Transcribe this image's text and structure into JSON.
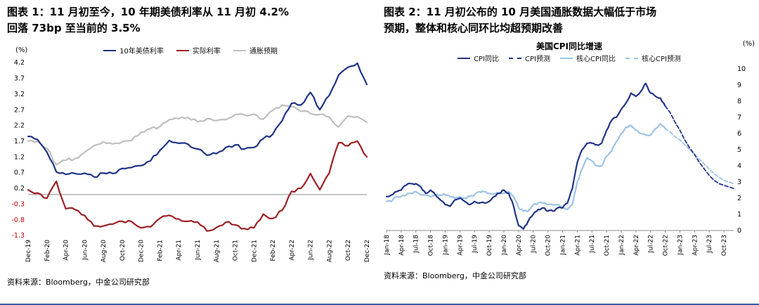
{
  "figure1": {
    "caption_line1": "图表 1：11 月初至今，10 年期美债利率从 11 月初 4.2%",
    "caption_line2": "回落 73bp 至当前的 3.5%",
    "source": "资料来源：Bloomberg，中金公司研究部"
  },
  "figure2": {
    "caption_line1": "图表 2：11 月初公布的 10 月美国通胀数据大幅低于市场",
    "caption_line2": "预期，整体和核心同环比均超预期改善",
    "source": "资料来源：Bloomberg，中金公司研究部"
  },
  "chart_data": [
    {
      "type": "line",
      "title": "",
      "y_unit": "(%)",
      "xlabel": "",
      "ylabel": "(%)",
      "ylim": [
        -1.3,
        4.2
      ],
      "yticks": [
        4.2,
        3.7,
        3.2,
        2.7,
        2.2,
        1.7,
        1.2,
        0.7,
        0.2,
        -0.3,
        -0.8,
        -1.3
      ],
      "ytick_decimals": 1,
      "y_axis_side": "left",
      "negative_tick_color": "#c00000",
      "zero_line": true,
      "bottom_axis": false,
      "grid": false,
      "legend_position": "top",
      "n_points": 37,
      "xtick_every": 2,
      "xtick_labels": [
        "Dec-19",
        "Feb-20",
        "Apr-20",
        "Jun-20",
        "Aug-20",
        "Oct-20",
        "Dec-20",
        "Feb-21",
        "Apr-21",
        "Jun-21",
        "Aug-21",
        "Oct-21",
        "Dec-21",
        "Feb-22",
        "Apr-22",
        "Jun-22",
        "Aug-22",
        "Oct-22",
        "Dec-22"
      ],
      "series": [
        {
          "id": "us10y",
          "name": "10年美债利率",
          "color": "#1f3488",
          "dash": false,
          "values": [
            1.85,
            1.75,
            1.35,
            0.72,
            0.64,
            0.67,
            0.68,
            0.56,
            0.68,
            0.67,
            0.83,
            0.86,
            0.92,
            1.07,
            1.4,
            1.72,
            1.63,
            1.6,
            1.45,
            1.25,
            1.3,
            1.5,
            1.58,
            1.45,
            1.5,
            1.78,
            1.92,
            2.35,
            2.9,
            2.85,
            3.25,
            2.7,
            3.15,
            3.8,
            4.05,
            4.18,
            3.5
          ]
        },
        {
          "id": "real-rate",
          "name": "实际利率",
          "color": "#9c2024",
          "dash": false,
          "values": [
            0.15,
            0.05,
            -0.12,
            0.42,
            -0.45,
            -0.48,
            -0.66,
            -1.0,
            -1.0,
            -0.94,
            -0.85,
            -0.86,
            -1.06,
            -1.03,
            -0.76,
            -0.66,
            -0.78,
            -0.85,
            -0.87,
            -1.16,
            -1.05,
            -0.88,
            -0.96,
            -1.08,
            -1.06,
            -0.62,
            -0.76,
            -0.5,
            0.1,
            0.2,
            0.67,
            0.15,
            0.68,
            1.65,
            1.55,
            1.7,
            1.2
          ]
        },
        {
          "id": "breakeven",
          "name": "通胀预期",
          "color": "#bfbfbf",
          "dash": false,
          "values": [
            1.7,
            1.7,
            1.47,
            0.95,
            1.09,
            1.15,
            1.34,
            1.56,
            1.68,
            1.61,
            1.68,
            1.72,
            1.98,
            2.1,
            2.16,
            2.38,
            2.41,
            2.45,
            2.32,
            2.41,
            2.35,
            2.38,
            2.54,
            2.53,
            2.56,
            2.4,
            2.68,
            2.85,
            2.8,
            2.65,
            2.58,
            2.55,
            2.47,
            2.15,
            2.5,
            2.48,
            2.3
          ]
        }
      ]
    },
    {
      "type": "line",
      "title": "美国CPI同比增速",
      "y_unit": "(%)",
      "xlabel": "",
      "ylabel": "(%)",
      "ylim": [
        0,
        10
      ],
      "yticks": [
        0,
        1,
        2,
        3,
        4,
        5,
        6,
        7,
        8,
        9,
        10
      ],
      "ytick_decimals": 0,
      "y_axis_side": "right",
      "zero_line": false,
      "bottom_axis": true,
      "grid": false,
      "legend_position": "top",
      "n_points": 72,
      "xtick_every": 3,
      "xtick_labels": [
        "Jan-18",
        "Apr-18",
        "Jul-18",
        "Oct-18",
        "Jan-19",
        "Apr-19",
        "Jul-19",
        "Oct-19",
        "Jan-20",
        "Apr-20",
        "Jul-20",
        "Oct-20",
        "Jan-21",
        "Apr-21",
        "Jul-21",
        "Oct-21",
        "Jan-22",
        "Apr-22",
        "Jul-22",
        "Oct-22",
        "Jan-23",
        "Apr-23",
        "Jul-23",
        "Oct-23"
      ],
      "series": [
        {
          "id": "cpi-yoy",
          "name": "CPI同比",
          "color": "#1f3488",
          "dash": false,
          "values": [
            2.1,
            2.2,
            2.4,
            2.5,
            2.8,
            2.9,
            2.9,
            2.7,
            2.3,
            2.5,
            2.2,
            1.9,
            1.6,
            1.5,
            1.9,
            2.0,
            1.8,
            1.6,
            1.8,
            1.7,
            1.7,
            1.8,
            2.1,
            2.3,
            2.5,
            2.3,
            1.5,
            0.3,
            0.1,
            0.6,
            1.0,
            1.3,
            1.4,
            1.2,
            1.2,
            1.4,
            1.4,
            1.7,
            2.6,
            4.2,
            5.0,
            5.4,
            5.4,
            5.3,
            5.4,
            6.2,
            6.8,
            7.0,
            7.5,
            7.9,
            8.5,
            8.3,
            8.6,
            9.1,
            8.5,
            8.3,
            8.2,
            7.7
          ]
        },
        {
          "id": "cpi-forecast",
          "name": "CPI预测",
          "color": "#1f3488",
          "dash": true,
          "start_index": 57,
          "values": [
            7.7,
            7.3,
            6.7,
            6.2,
            5.6,
            5.1,
            4.7,
            4.2,
            3.8,
            3.4,
            3.1,
            2.9,
            2.8,
            2.7,
            2.6
          ]
        },
        {
          "id": "core-cpi-yoy",
          "name": "核心CPI同比",
          "color": "#9dc3e6",
          "dash": false,
          "values": [
            1.8,
            1.8,
            2.1,
            2.1,
            2.2,
            2.3,
            2.4,
            2.2,
            2.2,
            2.1,
            2.2,
            2.2,
            2.2,
            2.1,
            2.0,
            2.1,
            2.0,
            2.1,
            2.2,
            2.4,
            2.4,
            2.3,
            2.3,
            2.3,
            2.3,
            2.4,
            2.1,
            1.4,
            1.2,
            1.2,
            1.6,
            1.7,
            1.7,
            1.6,
            1.6,
            1.6,
            1.4,
            1.3,
            1.6,
            3.0,
            3.8,
            4.5,
            4.3,
            4.0,
            4.0,
            4.6,
            4.9,
            5.5,
            6.0,
            6.4,
            6.5,
            6.2,
            6.0,
            5.9,
            5.9,
            6.3,
            6.6,
            6.3
          ]
        },
        {
          "id": "core-cpi-forecast",
          "name": "核心CPI预测",
          "color": "#9dc3e6",
          "dash": true,
          "start_index": 57,
          "values": [
            6.3,
            6.1,
            5.8,
            5.6,
            5.3,
            5.0,
            4.7,
            4.4,
            4.1,
            3.8,
            3.5,
            3.3,
            3.1,
            3.0,
            2.9
          ]
        }
      ]
    }
  ]
}
